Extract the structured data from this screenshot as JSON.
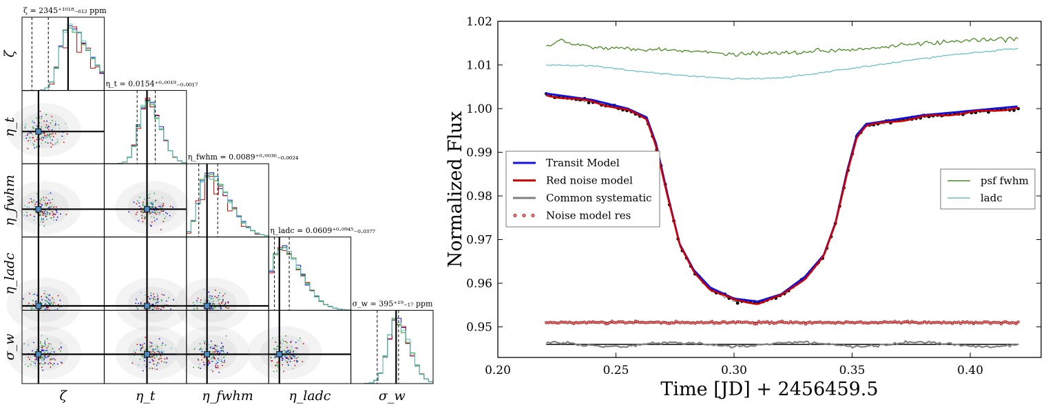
{
  "colors": {
    "transit": "#1010e0",
    "red_noise": "#d00000",
    "common": "#808080",
    "residual_fill": "#e36b6b",
    "data_points": "#000000",
    "psf_fwhm": "#4a8a22",
    "ladc": "#6cc0c6",
    "corner_blue": "#1010e0",
    "corner_red": "#d00000",
    "corner_green": "#22a022",
    "corner_cyan": "#5bc0c0"
  },
  "corner": {
    "diag_titles": [
      "ζ = 2345⁺¹⁰¹⁸₋₆₁₂ ppm",
      "η_t = 0.0154⁺⁰·⁰⁰¹⁹₋₀.₀₀₁₇",
      "η_fwhm = 0.0089⁺⁰·⁰⁰³⁶₋₀.₀₀₂₄",
      "η_ladc = 0.0609⁺⁰·⁰⁹⁴⁵₋₀.₀₃₇₇",
      "σ_w = 395⁺¹⁹₋₁₇ ppm"
    ],
    "x_labels": [
      "ζ",
      "η_t",
      "η_fwhm",
      "η_ladc",
      "σ_w"
    ],
    "y_labels": [
      "ζ",
      "η_t",
      "η_fwhm",
      "η_ladc",
      "σ_w"
    ]
  },
  "chart_data": {
    "type": "line",
    "xlabel": "Time [JD] + 2456459.5",
    "ylabel": "Normalized Flux",
    "xlim": [
      0.2,
      0.43
    ],
    "ylim": [
      0.943,
      1.02
    ],
    "xticks": [
      "0.20",
      "0.25",
      "0.30",
      "0.35",
      "0.40"
    ],
    "yticks": [
      "0.95",
      "0.96",
      "0.97",
      "0.98",
      "0.99",
      "1.00",
      "1.01",
      "1.02"
    ],
    "legend_left": [
      "Transit Model",
      "Red noise model",
      "Common systematic",
      "Noise model res"
    ],
    "legend_right": [
      "psf fwhm",
      "ladc"
    ],
    "transit_curve": {
      "x": [
        0.22,
        0.24,
        0.255,
        0.263,
        0.267,
        0.272,
        0.277,
        0.283,
        0.29,
        0.3,
        0.31,
        0.32,
        0.33,
        0.338,
        0.343,
        0.348,
        0.352,
        0.356,
        0.36,
        0.38,
        0.4,
        0.42
      ],
      "y": [
        1.0035,
        1.002,
        1.0,
        0.998,
        0.992,
        0.98,
        0.969,
        0.963,
        0.959,
        0.9565,
        0.9558,
        0.9575,
        0.9615,
        0.9665,
        0.974,
        0.986,
        0.994,
        0.9965,
        0.9968,
        0.9985,
        0.9995,
        1.0005
      ]
    },
    "psf_fwhm_series": {
      "x": [
        0.22,
        0.225,
        0.235,
        0.25,
        0.27,
        0.3,
        0.33,
        0.36,
        0.38,
        0.4,
        0.42
      ],
      "y": [
        1.014,
        1.0158,
        1.0145,
        1.0138,
        1.0136,
        1.0125,
        1.013,
        1.014,
        1.015,
        1.0155,
        1.016
      ]
    },
    "ladc_series": {
      "x": [
        0.22,
        0.24,
        0.26,
        0.28,
        0.3,
        0.32,
        0.34,
        0.36,
        0.38,
        0.4,
        0.42
      ],
      "y": [
        1.01,
        1.0098,
        1.0085,
        1.0075,
        1.0068,
        1.007,
        1.0085,
        1.01,
        1.0115,
        1.0128,
        1.0138
      ]
    },
    "residual_level": 0.951,
    "common_systematic_level": 0.946
  }
}
